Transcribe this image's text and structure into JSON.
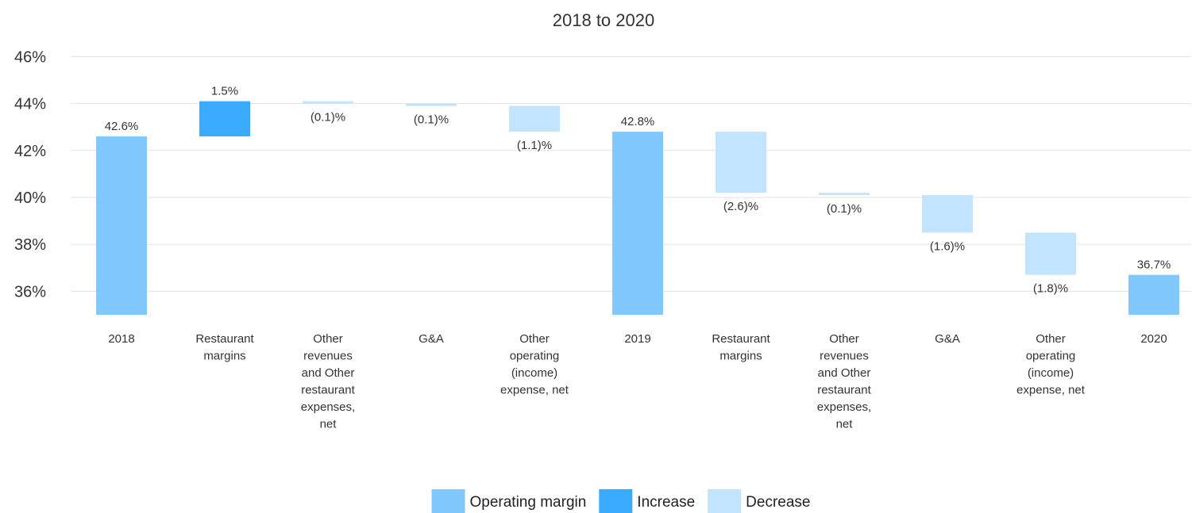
{
  "chart_data": {
    "type": "bar",
    "subtype": "waterfall",
    "title": "2018 to 2020",
    "xlabel": "",
    "ylabel": "",
    "ylim": [
      35,
      46
    ],
    "yticks": [
      36,
      38,
      40,
      42,
      44,
      46
    ],
    "ytick_labels": [
      "36%",
      "38%",
      "40%",
      "42%",
      "44%",
      "46%"
    ],
    "grid": true,
    "legend_position": "bottom",
    "colors": {
      "Operating margin": "#80c8ff",
      "Increase": "#3aabff",
      "Decrease": "#c2e4ff",
      "grid": "#e3e3e3"
    },
    "legend": [
      "Operating margin",
      "Increase",
      "Decrease"
    ],
    "bars": [
      {
        "category": [
          "2018"
        ],
        "kind": "Operating margin",
        "start": 35,
        "end": 42.6,
        "label": "42.6%",
        "label_pos": "above"
      },
      {
        "category": [
          "Restaurant",
          "margins"
        ],
        "kind": "Increase",
        "start": 42.6,
        "end": 44.1,
        "label": "1.5%",
        "label_pos": "above"
      },
      {
        "category": [
          "Other",
          "revenues",
          "and Other",
          "restaurant",
          "expenses,",
          "net"
        ],
        "kind": "Decrease",
        "start": 44.1,
        "end": 44.0,
        "label": "(0.1)%",
        "label_pos": "below"
      },
      {
        "category": [
          "G&A"
        ],
        "kind": "Decrease",
        "start": 44.0,
        "end": 43.9,
        "label": "(0.1)%",
        "label_pos": "below"
      },
      {
        "category": [
          "Other",
          "operating",
          "(income)",
          "expense, net"
        ],
        "kind": "Decrease",
        "start": 43.9,
        "end": 42.8,
        "label": "(1.1)%",
        "label_pos": "below"
      },
      {
        "category": [
          "2019"
        ],
        "kind": "Operating margin",
        "start": 35,
        "end": 42.8,
        "label": "42.8%",
        "label_pos": "above"
      },
      {
        "category": [
          "Restaurant",
          "margins"
        ],
        "kind": "Decrease",
        "start": 42.8,
        "end": 40.2,
        "label": "(2.6)%",
        "label_pos": "below"
      },
      {
        "category": [
          "Other",
          "revenues",
          "and Other",
          "restaurant",
          "expenses,",
          "net"
        ],
        "kind": "Decrease",
        "start": 40.2,
        "end": 40.1,
        "label": "(0.1)%",
        "label_pos": "below"
      },
      {
        "category": [
          "G&A"
        ],
        "kind": "Decrease",
        "start": 40.1,
        "end": 38.5,
        "label": "(1.6)%",
        "label_pos": "below"
      },
      {
        "category": [
          "Other",
          "operating",
          "(income)",
          "expense, net"
        ],
        "kind": "Decrease",
        "start": 38.5,
        "end": 36.7,
        "label": "(1.8)%",
        "label_pos": "below"
      },
      {
        "category": [
          "2020"
        ],
        "kind": "Operating margin",
        "start": 35,
        "end": 36.7,
        "label": "36.7%",
        "label_pos": "above"
      }
    ]
  }
}
